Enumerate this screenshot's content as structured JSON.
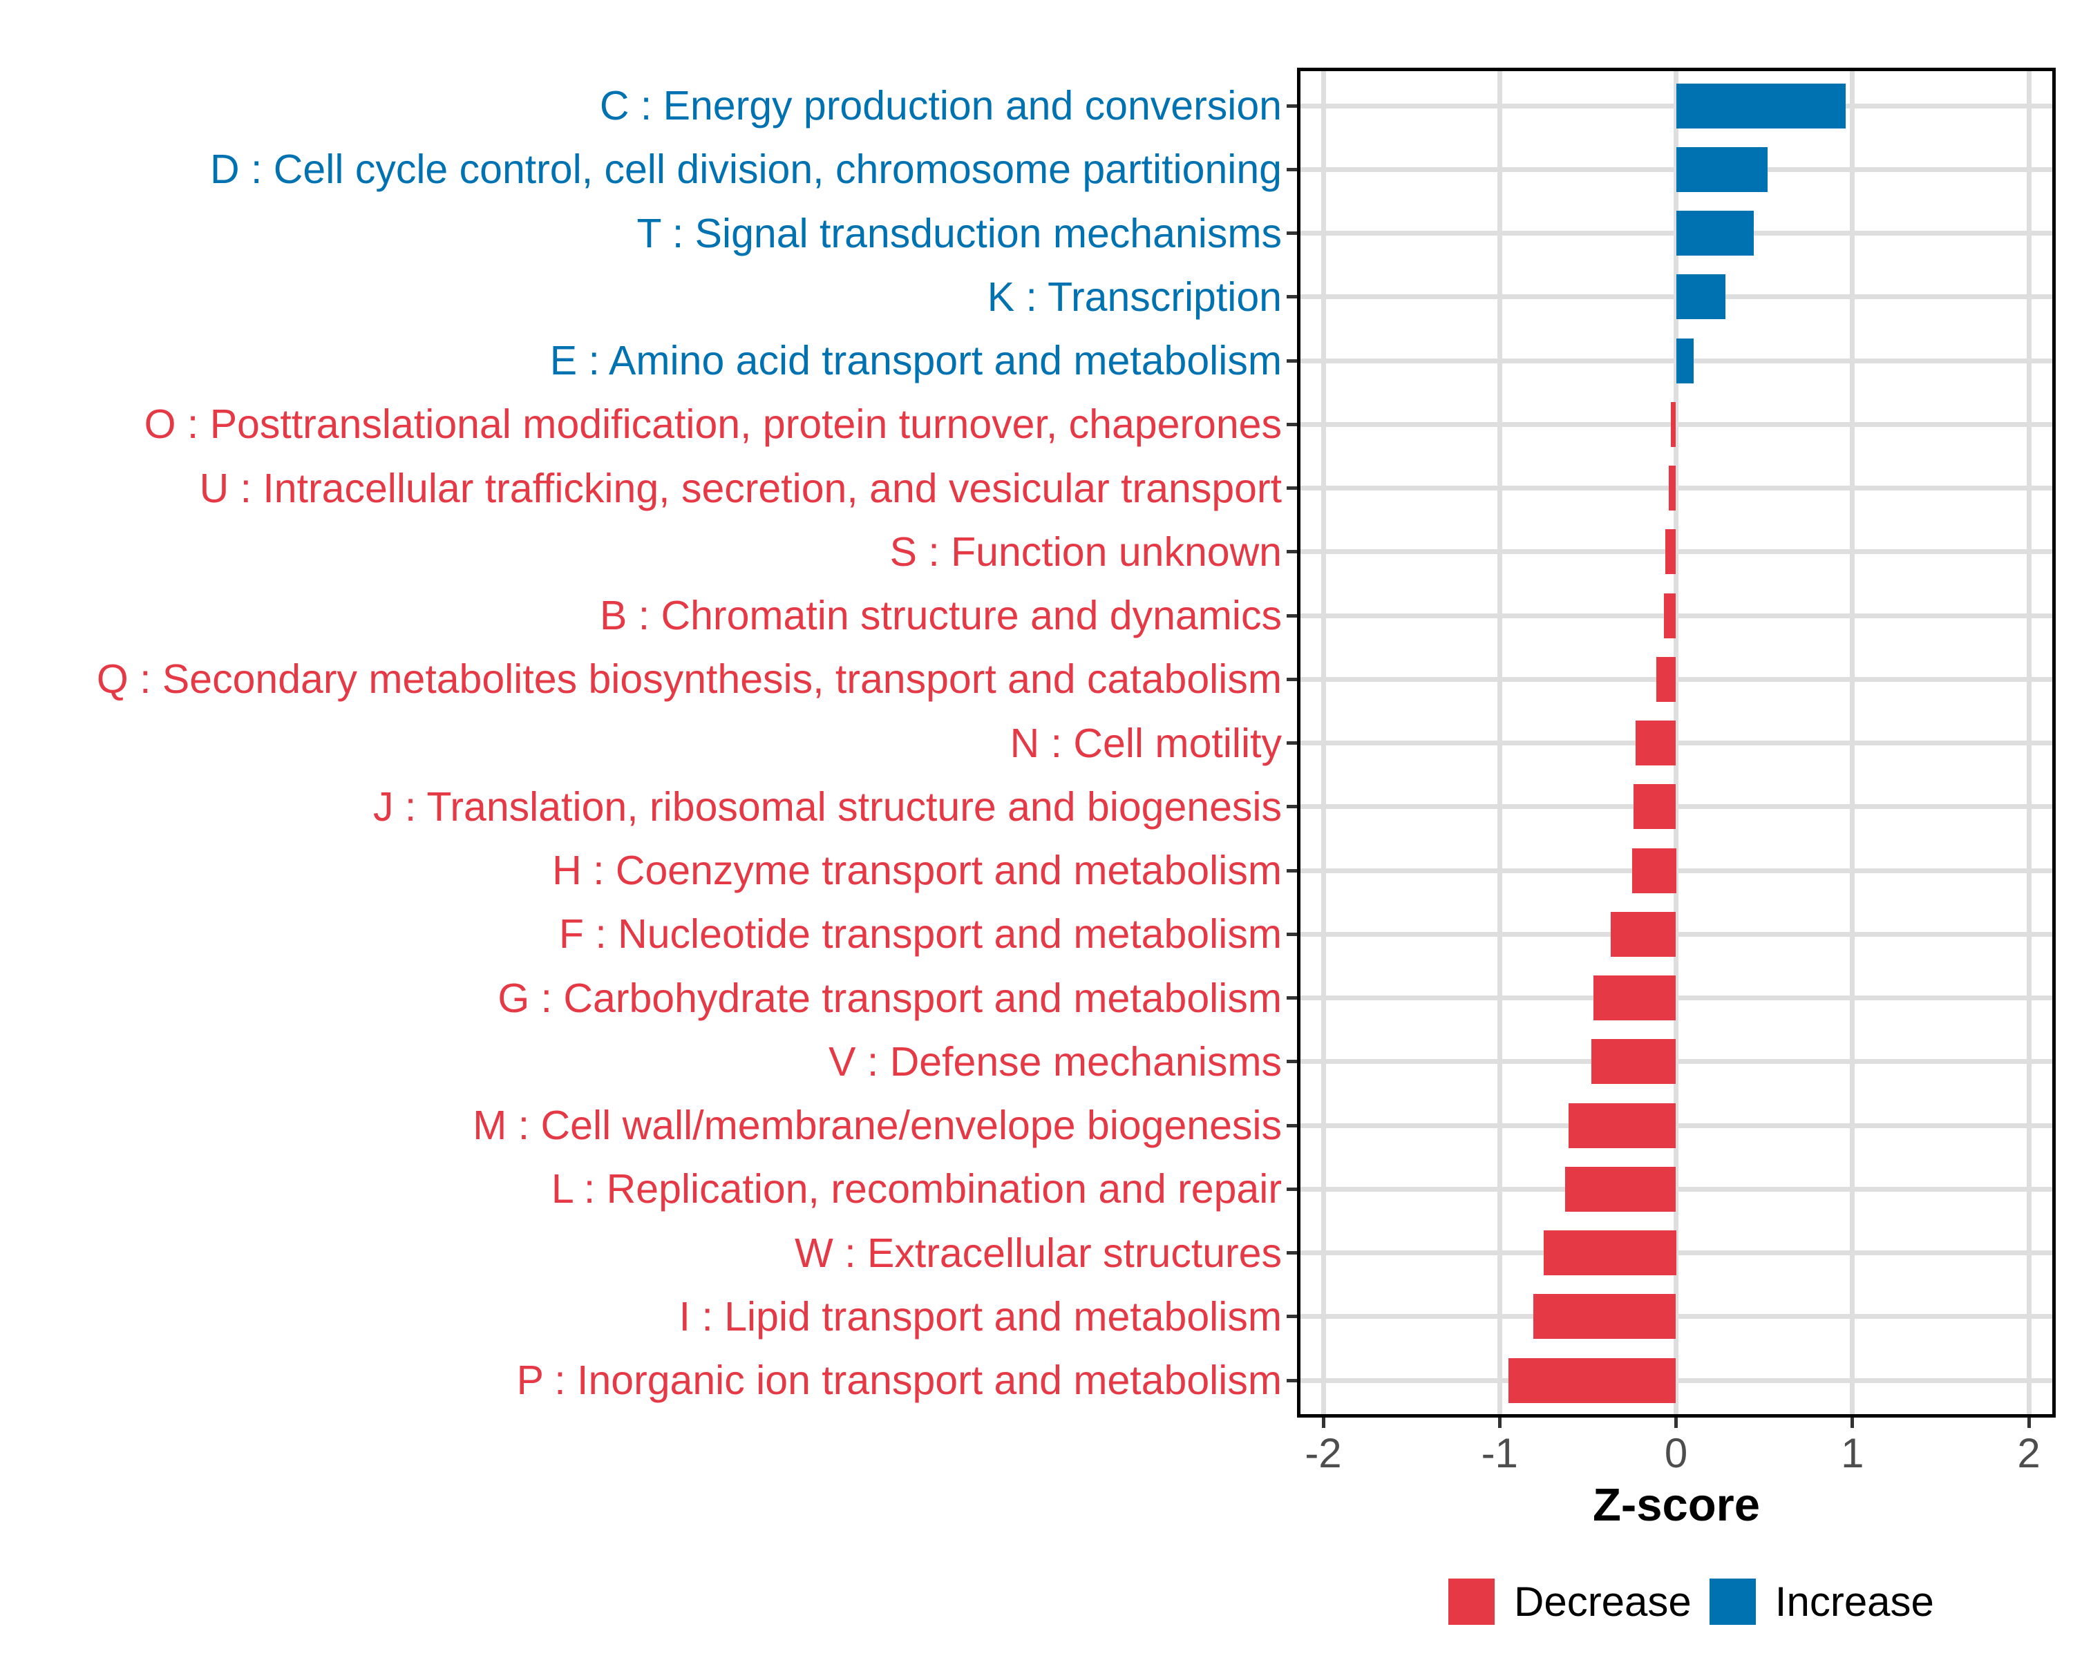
{
  "colors": {
    "increase": "#0072B2",
    "decrease": "#E63946",
    "grid": "#DEDEDE",
    "axis_text": "#4D4D4D",
    "axis_line": "#000000"
  },
  "chart_data": {
    "type": "bar",
    "orientation": "horizontal",
    "title": "",
    "xlabel": "Z-score",
    "ylabel": "",
    "xlim": [
      -2.15,
      2.15
    ],
    "x_ticks": [
      "-2",
      "-1",
      "0",
      "1",
      "2"
    ],
    "x_tick_values": [
      -2,
      -1,
      0,
      1,
      2
    ],
    "grid": true,
    "legend": {
      "position": "bottom",
      "items": [
        {
          "label": "Decrease",
          "color": "#E63946"
        },
        {
          "label": "Increase",
          "color": "#0072B2"
        }
      ]
    },
    "categories": [
      {
        "label": "C : Energy production and conversion",
        "group": "Increase",
        "value": 0.96
      },
      {
        "label": "D : Cell cycle control, cell division, chromosome partitioning",
        "group": "Increase",
        "value": 0.52
      },
      {
        "label": "T : Signal transduction mechanisms",
        "group": "Increase",
        "value": 0.44
      },
      {
        "label": "K : Transcription",
        "group": "Increase",
        "value": 0.28
      },
      {
        "label": "E : Amino acid transport and metabolism",
        "group": "Increase",
        "value": 0.1
      },
      {
        "label": "O : Posttranslational modification, protein turnover, chaperones",
        "group": "Decrease",
        "value": -0.03
      },
      {
        "label": "U : Intracellular trafficking, secretion, and vesicular transport",
        "group": "Decrease",
        "value": -0.04
      },
      {
        "label": "S : Function unknown",
        "group": "Decrease",
        "value": -0.06
      },
      {
        "label": "B : Chromatin structure and dynamics",
        "group": "Decrease",
        "value": -0.07
      },
      {
        "label": "Q : Secondary metabolites biosynthesis, transport and catabolism",
        "group": "Decrease",
        "value": -0.11
      },
      {
        "label": "N : Cell motility",
        "group": "Decrease",
        "value": -0.23
      },
      {
        "label": "J : Translation, ribosomal structure and biogenesis",
        "group": "Decrease",
        "value": -0.24
      },
      {
        "label": "H : Coenzyme transport and metabolism",
        "group": "Decrease",
        "value": -0.25
      },
      {
        "label": "F : Nucleotide transport and metabolism",
        "group": "Decrease",
        "value": -0.37
      },
      {
        "label": "G : Carbohydrate transport and metabolism",
        "group": "Decrease",
        "value": -0.47
      },
      {
        "label": "V : Defense mechanisms",
        "group": "Decrease",
        "value": -0.48
      },
      {
        "label": "M : Cell wall/membrane/envelope biogenesis",
        "group": "Decrease",
        "value": -0.61
      },
      {
        "label": "L : Replication, recombination and repair",
        "group": "Decrease",
        "value": -0.63
      },
      {
        "label": "W : Extracellular structures",
        "group": "Decrease",
        "value": -0.75
      },
      {
        "label": "I : Lipid transport and metabolism",
        "group": "Decrease",
        "value": -0.81
      },
      {
        "label": "P : Inorganic ion transport and metabolism",
        "group": "Decrease",
        "value": -0.95
      }
    ]
  }
}
